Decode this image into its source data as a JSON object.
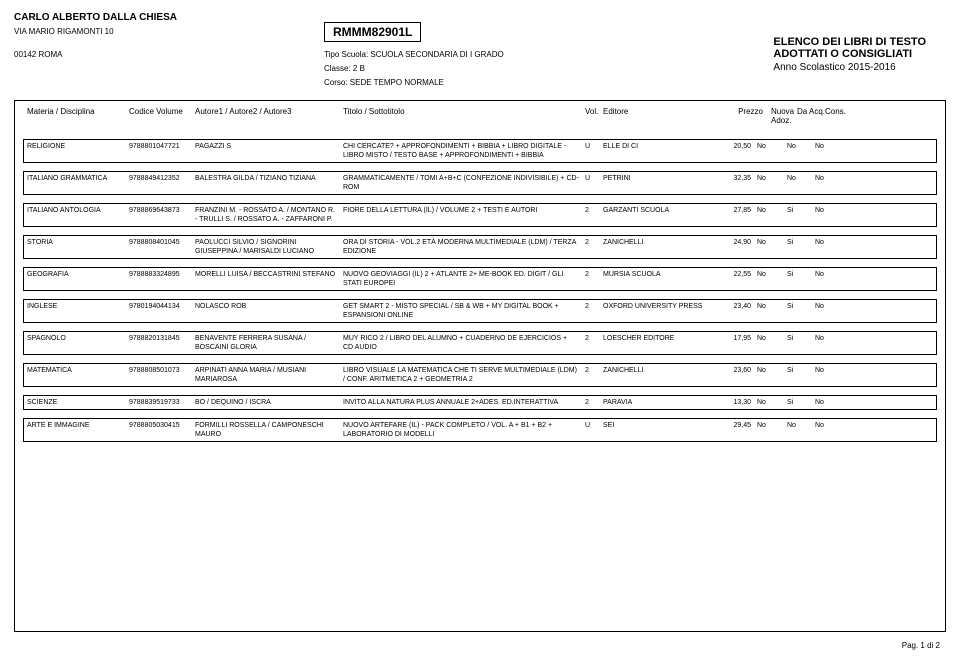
{
  "header": {
    "school_name": "CARLO ALBERTO DALLA CHIESA",
    "address": "VIA MARIO RIGAMONTI 10",
    "city_zip": "00142  ROMA",
    "code": "RMMM82901L",
    "tipo": "Tipo Scuola:  SCUOLA SECONDARIA DI I GRADO",
    "classe": "Classe:  2 B",
    "corso": "Corso:  SEDE TEMPO NORMALE",
    "title1": "ELENCO DEI LIBRI DI TESTO",
    "title2": "ADOTTATI O CONSIGLIATI",
    "anno": "Anno Scolastico 2015-2016"
  },
  "columns": {
    "materia": "Materia / Disciplina",
    "codice": "Codice Volume",
    "autore": "Autore1 / Autore2 / Autore3",
    "titolo": "Titolo / Sottotitolo",
    "vol": "Vol.",
    "editore": "Editore",
    "prezzo": "Prezzo",
    "nuova": "Nuova Adoz.",
    "da": "Da Acq.",
    "cons": "Cons."
  },
  "rows": [
    {
      "materia": "RELIGIONE",
      "codice": "9788801047721",
      "autore": "PAGAZZI S",
      "titolo": "CHI CERCATE? + APPROFONDIMENTI + BIBBIA + LIBRO DIGITALE - LIBRO MISTO / TESTO BASE + APPROFONDIMENTI + BIBBIA",
      "vol": "U",
      "editore": "ELLE DI CI",
      "prezzo": "20,50",
      "nuova": "No",
      "da": "No",
      "cons": "No"
    },
    {
      "materia": "ITALIANO GRAMMATICA",
      "codice": "9788849412352",
      "autore": "BALESTRA GILDA / TIZIANO TIZIANA",
      "titolo": "GRAMMATICAMENTE / TOMI A+B+C (CONFEZIONE INDIVISIBILE) + CD-ROM",
      "vol": "U",
      "editore": "PETRINI",
      "prezzo": "32,35",
      "nuova": "No",
      "da": "No",
      "cons": "No"
    },
    {
      "materia": "ITALIANO ANTOLOGIA",
      "codice": "9788869643873",
      "autore": "FRANZINI M. - ROSSATO A. / MONTANO R. - TRULLI S. / ROSSATO A. - ZAFFARONI P.",
      "titolo": "FIORE DELLA LETTURA (IL) / VOLUME 2 + TESTI E AUTORI",
      "vol": "2",
      "editore": "GARZANTI SCUOLA",
      "prezzo": "27,85",
      "nuova": "No",
      "da": "Si",
      "cons": "No"
    },
    {
      "materia": "STORIA",
      "codice": "9788808401045",
      "autore": "PAOLUCCI SILVIO / SIGNORINI GIUSEPPINA / MARISALDI LUCIANO",
      "titolo": "ORA DI STORIA - VOL.2 ETÀ MODERNA MULTIMEDIALE (LDM) / TERZA EDIZIONE",
      "vol": "2",
      "editore": "ZANICHELLI",
      "prezzo": "24,90",
      "nuova": "No",
      "da": "Si",
      "cons": "No"
    },
    {
      "materia": "GEOGRAFIA",
      "codice": "9788883324895",
      "autore": "MORELLI LUISA / BECCASTRINI STEFANO",
      "titolo": "NUOVO GEOVIAGGI (IL) 2 + ATLANTE 2+ ME-BOOK  ED. DIGIT / GLI STATI EUROPEI",
      "vol": "2",
      "editore": "MURSIA SCUOLA",
      "prezzo": "22,55",
      "nuova": "No",
      "da": "Si",
      "cons": "No"
    },
    {
      "materia": "INGLESE",
      "codice": "9780194044134",
      "autore": "NOLASCO ROB",
      "titolo": "GET SMART 2  - MISTO SPECIAL / SB & WB + MY DIGITAL BOOK + ESPANSIONI ONLINE",
      "vol": "2",
      "editore": "OXFORD UNIVERSITY PRESS",
      "prezzo": "23,40",
      "nuova": "No",
      "da": "Si",
      "cons": "No"
    },
    {
      "materia": "SPAGNOLO",
      "codice": "9788820131845",
      "autore": "BENAVENTE FERRERA SUSANA / BOSCAINI GLORIA",
      "titolo": "MUY RICO 2 / LIBRO DEL ALUMNO + CUADERNO DE EJERCICIOS + CD AUDIO",
      "vol": "2",
      "editore": "LOESCHER EDITORE",
      "prezzo": "17,95",
      "nuova": "No",
      "da": "Si",
      "cons": "No"
    },
    {
      "materia": "MATEMATICA",
      "codice": "9788808501073",
      "autore": "ARPINATI ANNA MARIA / MUSIANI MARIAROSA",
      "titolo": "LIBRO VISUALE LA MATEMATICA CHE TI SERVE MULTIMEDIALE (LDM) / CONF. ARITMETICA 2 + GEOMETRIA 2",
      "vol": "2",
      "editore": "ZANICHELLI",
      "prezzo": "23,60",
      "nuova": "No",
      "da": "Si",
      "cons": "No"
    },
    {
      "materia": "SCIENZE",
      "codice": "9788839519733",
      "autore": "BO / DEQUINO / ISCRA",
      "titolo": "INVITO ALLA NATURA PLUS ANNUALE 2+ADES. ED.INTERATTIVA",
      "vol": "2",
      "editore": "PARAVIA",
      "prezzo": "13,30",
      "nuova": "No",
      "da": "Si",
      "cons": "No"
    },
    {
      "materia": "ARTE E IMMAGINE",
      "codice": "9788805030415",
      "autore": "FORMILLI ROSSELLA / CAMPONESCHI MAURO",
      "titolo": "NUOVO ARTEFARE (IL) - PACK COMPLETO / VOL. A + B1 + B2 + LABORATORIO DI MODELLI",
      "vol": "U",
      "editore": "SEI",
      "prezzo": "29,45",
      "nuova": "No",
      "da": "No",
      "cons": "No"
    }
  ],
  "footer": {
    "page": "Pag. 1 di 2"
  }
}
